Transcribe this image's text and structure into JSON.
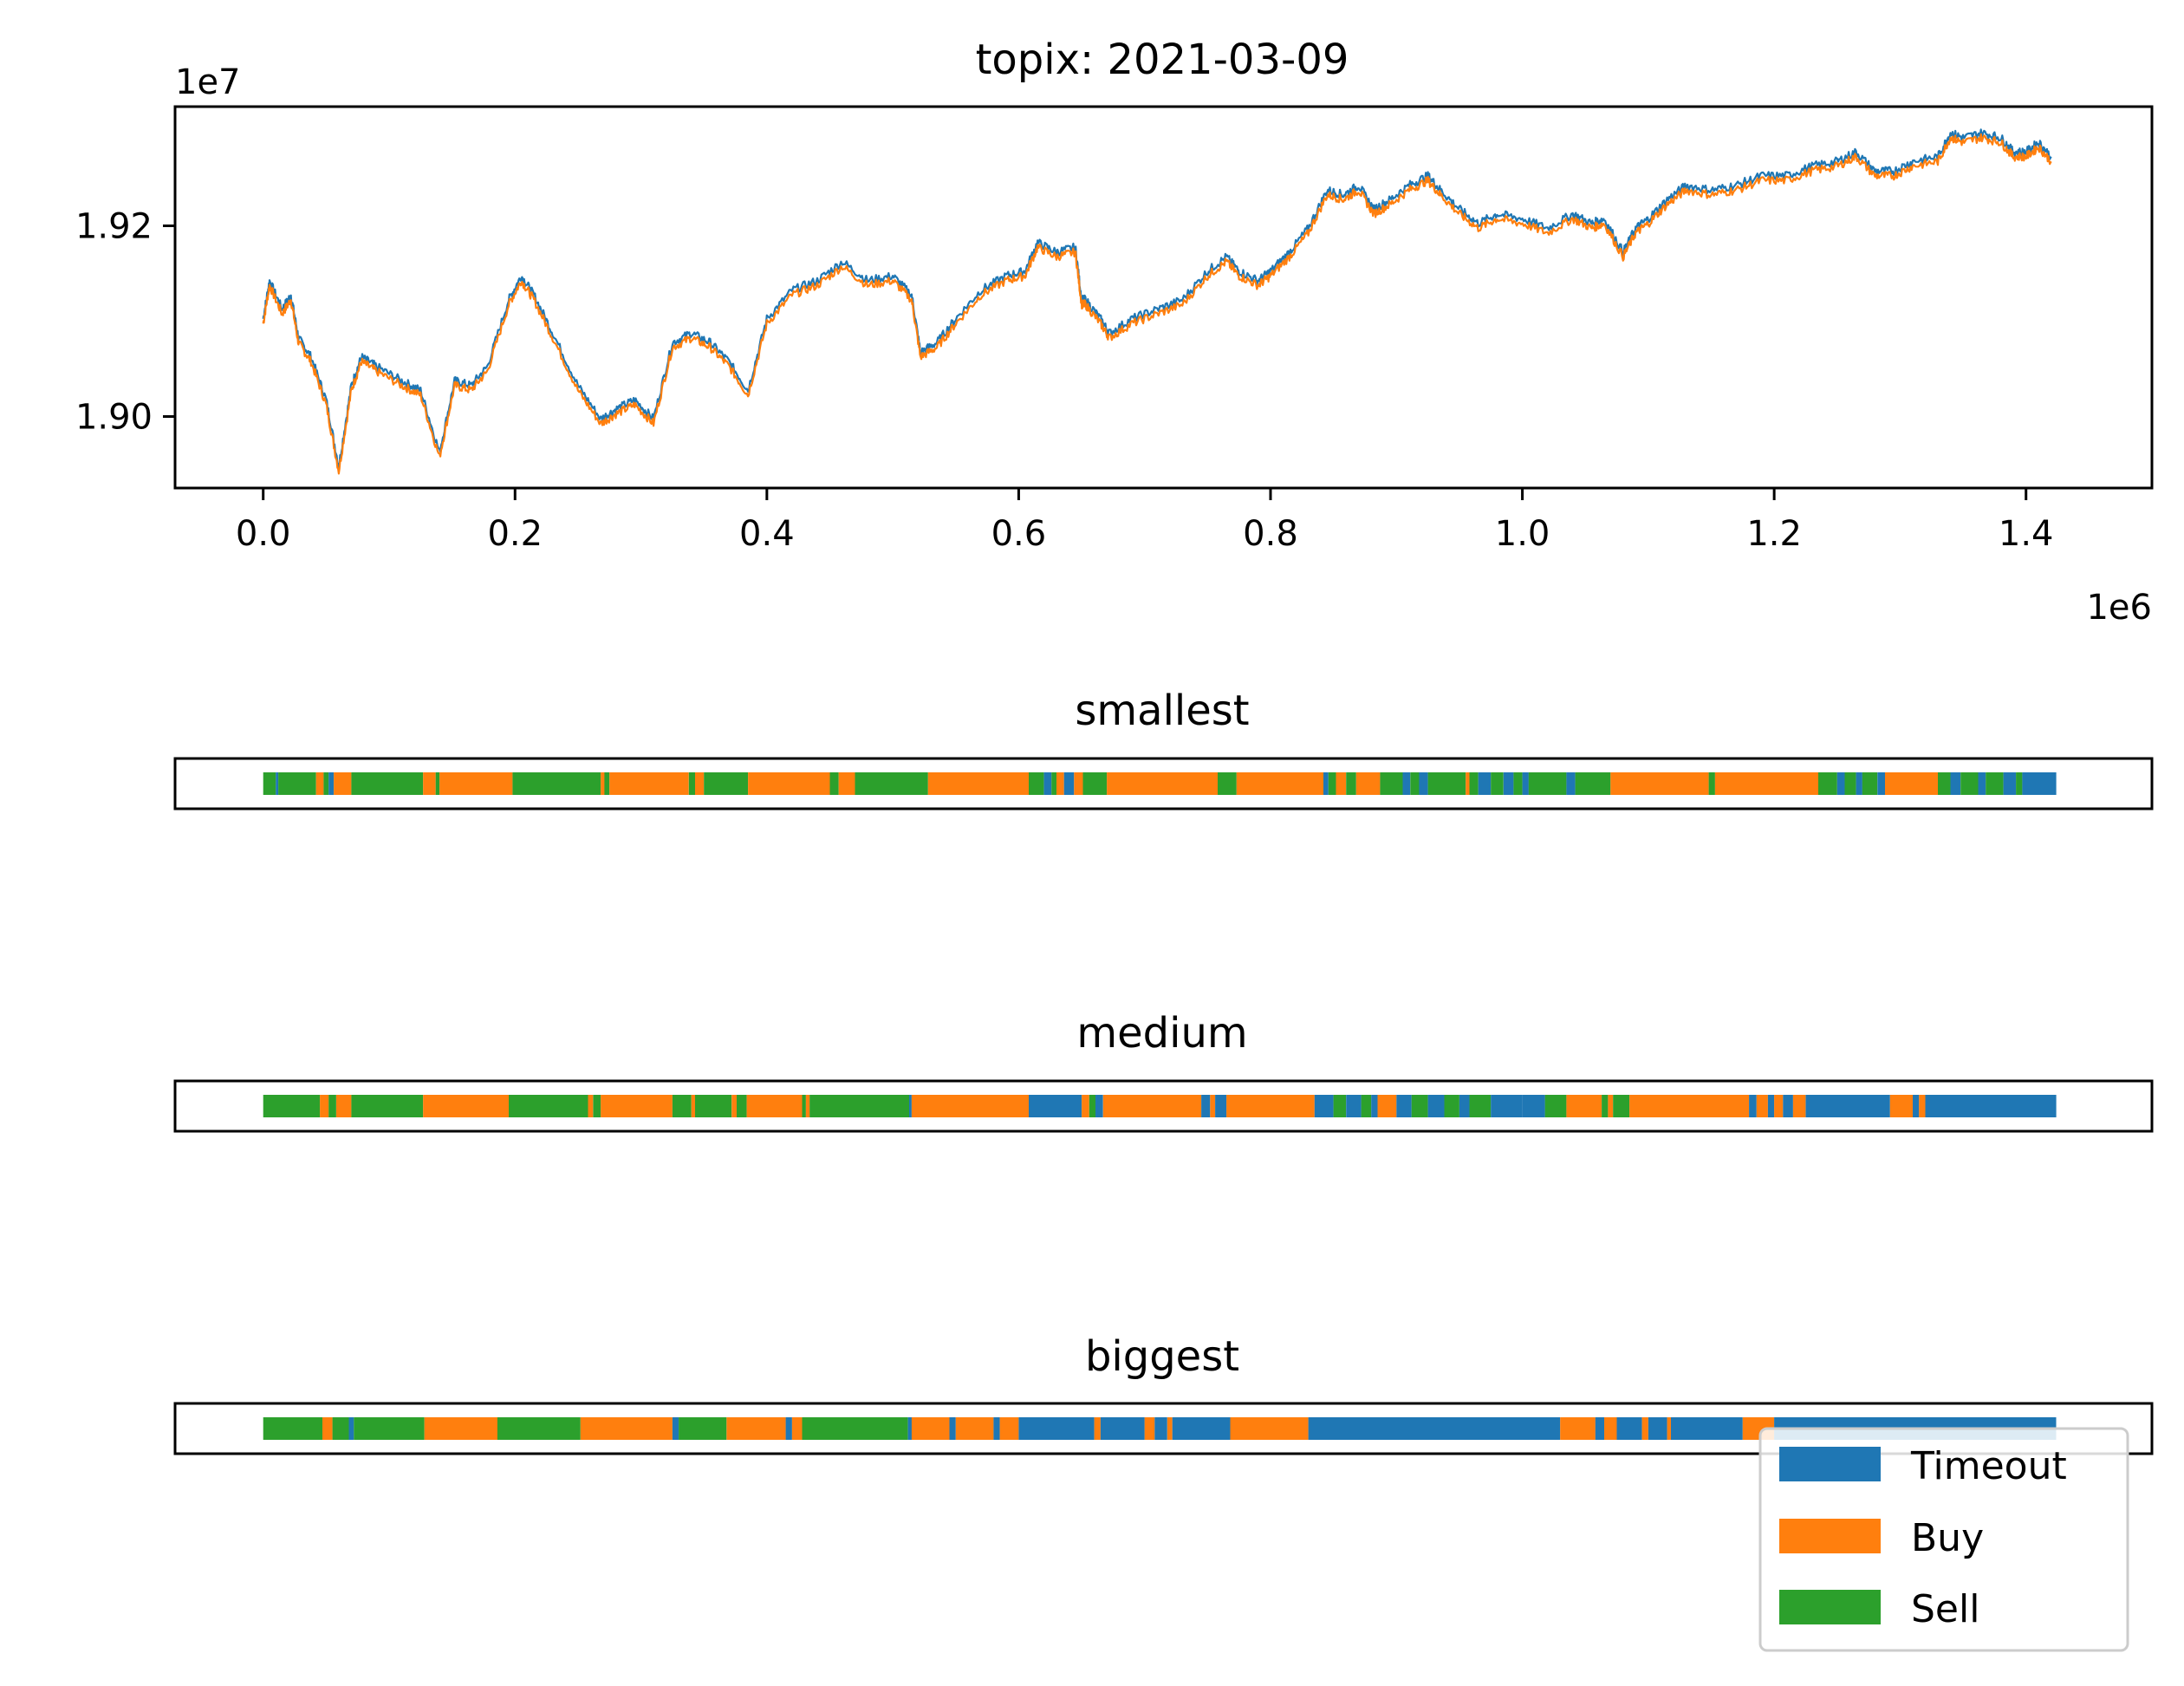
{
  "colors": {
    "timeout": "#1f77b4",
    "buy": "#ff7f0e",
    "sell": "#2ca02c",
    "axis": "#000000"
  },
  "chart_data": [
    {
      "type": "line",
      "title": "topix: 2021-03-09",
      "x_offset_label": "1e6",
      "y_offset_label": "1e7",
      "xlim": [
        -70000,
        1500000
      ],
      "ylim": [
        18925000,
        19325000
      ],
      "xticks": [
        0,
        200000,
        400000,
        600000,
        800000,
        1000000,
        1200000,
        1400000
      ],
      "xtick_labels": [
        "0.0",
        "0.2",
        "0.4",
        "0.6",
        "0.8",
        "1.0",
        "1.2",
        "1.4"
      ],
      "yticks": [
        19000000,
        19200000
      ],
      "ytick_labels": [
        "1.90",
        "1.92"
      ],
      "series": [
        {
          "color": "#1f77b4",
          "offset": 2500
        },
        {
          "color": "#ff7f0e",
          "offset": -2500
        }
      ],
      "x": [
        0,
        5000,
        15000,
        22000,
        28000,
        38000,
        50000,
        60000,
        70000,
        78000,
        90000,
        110000,
        125000,
        140000,
        152000,
        165000,
        178000,
        195000,
        205000,
        215000,
        230000,
        250000,
        268000,
        280000,
        295000,
        310000,
        325000,
        340000,
        355000,
        370000,
        385000,
        400000,
        420000,
        440000,
        460000,
        480000,
        500000,
        515000,
        522000,
        535000,
        550000,
        570000,
        590000,
        605000,
        615000,
        630000,
        645000,
        650000,
        653000,
        665000,
        672000,
        690000,
        710000,
        730000,
        750000,
        765000,
        775000,
        790000,
        800000,
        815000,
        830000,
        845000,
        858000,
        870000,
        882000,
        895000,
        910000,
        925000,
        935000,
        950000,
        965000,
        980000,
        1000000,
        1020000,
        1040000,
        1055000,
        1065000,
        1080000,
        1090000,
        1100000,
        1115000,
        1130000,
        1150000,
        1170000,
        1190000,
        1210000,
        1230000,
        1250000,
        1265000,
        1280000,
        1295000,
        1310000,
        1330000,
        1340000,
        1350000,
        1365000,
        1380000,
        1390000,
        1400000,
        1410000,
        1420000
      ],
      "y": [
        19100000,
        19140000,
        19110000,
        19125000,
        19080000,
        19060000,
        19015000,
        18945000,
        19030000,
        19060000,
        19050000,
        19035000,
        19025000,
        18960000,
        19035000,
        19030000,
        19050000,
        19120000,
        19145000,
        19125000,
        19085000,
        19030000,
        18995000,
        19005000,
        19015000,
        18995000,
        19075000,
        19085000,
        19075000,
        19055000,
        19025000,
        19100000,
        19130000,
        19140000,
        19160000,
        19140000,
        19145000,
        19125000,
        19065000,
        19075000,
        19100000,
        19130000,
        19145000,
        19150000,
        19180000,
        19170000,
        19175000,
        19120000,
        19120000,
        19100000,
        19085000,
        19100000,
        19110000,
        19120000,
        19150000,
        19165000,
        19150000,
        19140000,
        19150000,
        19170000,
        19195000,
        19235000,
        19230000,
        19240000,
        19215000,
        19225000,
        19240000,
        19250000,
        19235000,
        19215000,
        19200000,
        19210000,
        19205000,
        19195000,
        19210000,
        19200000,
        19205000,
        19170000,
        19195000,
        19205000,
        19225000,
        19240000,
        19235000,
        19240000,
        19250000,
        19250000,
        19260000,
        19265000,
        19275000,
        19255000,
        19255000,
        19265000,
        19270000,
        19295000,
        19290000,
        19295000,
        19290000,
        19275000,
        19275000,
        19285000,
        19270000
      ]
    },
    {
      "type": "bar",
      "title": "smallest",
      "xlim": [
        -70000,
        1500000
      ],
      "segments": [
        [
          0,
          10000,
          "sell"
        ],
        [
          10000,
          12000,
          "timeout"
        ],
        [
          12000,
          42000,
          "sell"
        ],
        [
          42000,
          48000,
          "buy"
        ],
        [
          48000,
          52000,
          "sell"
        ],
        [
          52000,
          56000,
          "timeout"
        ],
        [
          56000,
          70000,
          "buy"
        ],
        [
          70000,
          127000,
          "sell"
        ],
        [
          127000,
          137000,
          "buy"
        ],
        [
          137000,
          140000,
          "sell"
        ],
        [
          140000,
          198000,
          "buy"
        ],
        [
          198000,
          268000,
          "sell"
        ],
        [
          268000,
          271000,
          "buy"
        ],
        [
          271000,
          275000,
          "sell"
        ],
        [
          275000,
          338000,
          "buy"
        ],
        [
          338000,
          343000,
          "sell"
        ],
        [
          343000,
          350000,
          "buy"
        ],
        [
          350000,
          385000,
          "sell"
        ],
        [
          385000,
          450000,
          "buy"
        ],
        [
          450000,
          457000,
          "sell"
        ],
        [
          457000,
          470000,
          "buy"
        ],
        [
          470000,
          528000,
          "sell"
        ],
        [
          528000,
          608000,
          "buy"
        ],
        [
          608000,
          620000,
          "sell"
        ],
        [
          620000,
          626000,
          "timeout"
        ],
        [
          626000,
          630000,
          "sell"
        ],
        [
          630000,
          636000,
          "buy"
        ],
        [
          636000,
          644000,
          "timeout"
        ],
        [
          644000,
          651000,
          "buy"
        ],
        [
          651000,
          670000,
          "sell"
        ],
        [
          670000,
          758000,
          "buy"
        ],
        [
          758000,
          773000,
          "sell"
        ],
        [
          773000,
          842000,
          "buy"
        ],
        [
          842000,
          846000,
          "timeout"
        ],
        [
          846000,
          852000,
          "sell"
        ],
        [
          852000,
          860000,
          "buy"
        ],
        [
          860000,
          868000,
          "sell"
        ],
        [
          868000,
          887000,
          "buy"
        ],
        [
          887000,
          905000,
          "sell"
        ],
        [
          905000,
          911000,
          "timeout"
        ],
        [
          911000,
          918000,
          "sell"
        ],
        [
          918000,
          925000,
          "timeout"
        ],
        [
          925000,
          955000,
          "sell"
        ],
        [
          955000,
          958000,
          "buy"
        ],
        [
          958000,
          965000,
          "sell"
        ],
        [
          965000,
          975000,
          "timeout"
        ],
        [
          975000,
          985000,
          "sell"
        ],
        [
          985000,
          993000,
          "timeout"
        ],
        [
          993000,
          1000000,
          "sell"
        ],
        [
          1000000,
          1005000,
          "timeout"
        ],
        [
          1005000,
          1035000,
          "sell"
        ],
        [
          1035000,
          1042000,
          "timeout"
        ],
        [
          1042000,
          1070000,
          "sell"
        ],
        [
          1070000,
          1148000,
          "buy"
        ],
        [
          1148000,
          1153000,
          "sell"
        ],
        [
          1153000,
          1235000,
          "buy"
        ],
        [
          1235000,
          1250000,
          "sell"
        ],
        [
          1250000,
          1256000,
          "timeout"
        ],
        [
          1256000,
          1265000,
          "sell"
        ],
        [
          1265000,
          1270000,
          "timeout"
        ],
        [
          1270000,
          1282000,
          "sell"
        ],
        [
          1282000,
          1288000,
          "timeout"
        ],
        [
          1288000,
          1330000,
          "buy"
        ],
        [
          1330000,
          1340000,
          "sell"
        ],
        [
          1340000,
          1348000,
          "timeout"
        ],
        [
          1348000,
          1362000,
          "sell"
        ],
        [
          1362000,
          1368000,
          "timeout"
        ],
        [
          1368000,
          1382000,
          "sell"
        ],
        [
          1382000,
          1392000,
          "timeout"
        ],
        [
          1392000,
          1397000,
          "sell"
        ],
        [
          1397000,
          1424000,
          "timeout"
        ]
      ]
    },
    {
      "type": "bar",
      "title": "medium",
      "xlim": [
        -70000,
        1500000
      ],
      "segments": [
        [
          0,
          45000,
          "sell"
        ],
        [
          45000,
          52000,
          "buy"
        ],
        [
          52000,
          58000,
          "sell"
        ],
        [
          58000,
          70000,
          "buy"
        ],
        [
          70000,
          127000,
          "sell"
        ],
        [
          127000,
          195000,
          "buy"
        ],
        [
          195000,
          258000,
          "sell"
        ],
        [
          258000,
          262000,
          "buy"
        ],
        [
          262000,
          268000,
          "sell"
        ],
        [
          268000,
          325000,
          "buy"
        ],
        [
          325000,
          340000,
          "sell"
        ],
        [
          340000,
          343000,
          "buy"
        ],
        [
          343000,
          372000,
          "sell"
        ],
        [
          372000,
          376000,
          "buy"
        ],
        [
          376000,
          384000,
          "sell"
        ],
        [
          384000,
          428000,
          "buy"
        ],
        [
          428000,
          431000,
          "sell"
        ],
        [
          431000,
          434000,
          "buy"
        ],
        [
          434000,
          513000,
          "sell"
        ],
        [
          513000,
          515000,
          "timeout"
        ],
        [
          515000,
          608000,
          "buy"
        ],
        [
          608000,
          650000,
          "timeout"
        ],
        [
          650000,
          656000,
          "buy"
        ],
        [
          656000,
          661000,
          "sell"
        ],
        [
          661000,
          667000,
          "timeout"
        ],
        [
          667000,
          745000,
          "buy"
        ],
        [
          745000,
          752000,
          "timeout"
        ],
        [
          752000,
          756000,
          "buy"
        ],
        [
          756000,
          765000,
          "timeout"
        ],
        [
          765000,
          835000,
          "buy"
        ],
        [
          835000,
          850000,
          "timeout"
        ],
        [
          850000,
          860000,
          "sell"
        ],
        [
          860000,
          872000,
          "timeout"
        ],
        [
          872000,
          880000,
          "sell"
        ],
        [
          880000,
          885000,
          "timeout"
        ],
        [
          885000,
          900000,
          "buy"
        ],
        [
          900000,
          912000,
          "timeout"
        ],
        [
          912000,
          925000,
          "sell"
        ],
        [
          925000,
          938000,
          "timeout"
        ],
        [
          938000,
          950000,
          "sell"
        ],
        [
          950000,
          958000,
          "timeout"
        ],
        [
          958000,
          975000,
          "sell"
        ],
        [
          975000,
          1000000,
          "timeout"
        ],
        [
          1000000,
          1018000,
          "timeout"
        ],
        [
          1018000,
          1035000,
          "sell"
        ],
        [
          1035000,
          1063000,
          "buy"
        ],
        [
          1063000,
          1068000,
          "sell"
        ],
        [
          1068000,
          1072000,
          "buy"
        ],
        [
          1072000,
          1085000,
          "sell"
        ],
        [
          1085000,
          1180000,
          "buy"
        ],
        [
          1180000,
          1186000,
          "timeout"
        ],
        [
          1186000,
          1195000,
          "buy"
        ],
        [
          1195000,
          1200000,
          "timeout"
        ],
        [
          1200000,
          1207000,
          "buy"
        ],
        [
          1207000,
          1215000,
          "timeout"
        ],
        [
          1215000,
          1225000,
          "buy"
        ],
        [
          1225000,
          1292000,
          "timeout"
        ],
        [
          1292000,
          1310000,
          "buy"
        ],
        [
          1310000,
          1315000,
          "timeout"
        ],
        [
          1315000,
          1320000,
          "buy"
        ],
        [
          1320000,
          1424000,
          "timeout"
        ]
      ]
    },
    {
      "type": "bar",
      "title": "biggest",
      "xlim": [
        -70000,
        1500000
      ],
      "segments": [
        [
          0,
          47000,
          "sell"
        ],
        [
          47000,
          55000,
          "buy"
        ],
        [
          55000,
          68000,
          "sell"
        ],
        [
          68000,
          72000,
          "timeout"
        ],
        [
          72000,
          128000,
          "sell"
        ],
        [
          128000,
          186000,
          "buy"
        ],
        [
          186000,
          252000,
          "sell"
        ],
        [
          252000,
          325000,
          "buy"
        ],
        [
          325000,
          330000,
          "timeout"
        ],
        [
          330000,
          368000,
          "sell"
        ],
        [
          368000,
          415000,
          "buy"
        ],
        [
          415000,
          420000,
          "timeout"
        ],
        [
          420000,
          428000,
          "buy"
        ],
        [
          428000,
          512000,
          "sell"
        ],
        [
          512000,
          515000,
          "timeout"
        ],
        [
          515000,
          545000,
          "buy"
        ],
        [
          545000,
          550000,
          "timeout"
        ],
        [
          550000,
          580000,
          "buy"
        ],
        [
          580000,
          585000,
          "timeout"
        ],
        [
          585000,
          600000,
          "buy"
        ],
        [
          600000,
          660000,
          "timeout"
        ],
        [
          660000,
          665000,
          "buy"
        ],
        [
          665000,
          700000,
          "timeout"
        ],
        [
          700000,
          708000,
          "buy"
        ],
        [
          708000,
          718000,
          "timeout"
        ],
        [
          718000,
          722000,
          "buy"
        ],
        [
          722000,
          768000,
          "timeout"
        ],
        [
          768000,
          830000,
          "buy"
        ],
        [
          830000,
          1030000,
          "timeout"
        ],
        [
          1030000,
          1058000,
          "buy"
        ],
        [
          1058000,
          1065000,
          "timeout"
        ],
        [
          1065000,
          1075000,
          "buy"
        ],
        [
          1075000,
          1095000,
          "timeout"
        ],
        [
          1095000,
          1100000,
          "buy"
        ],
        [
          1100000,
          1115000,
          "timeout"
        ],
        [
          1115000,
          1118000,
          "buy"
        ],
        [
          1118000,
          1175000,
          "timeout"
        ],
        [
          1175000,
          1200000,
          "buy"
        ],
        [
          1200000,
          1424000,
          "timeout"
        ]
      ]
    }
  ],
  "legend": {
    "placement": "lower-right",
    "items": [
      {
        "label": "Timeout",
        "key": "timeout"
      },
      {
        "label": "Buy",
        "key": "buy"
      },
      {
        "label": "Sell",
        "key": "sell"
      }
    ]
  }
}
